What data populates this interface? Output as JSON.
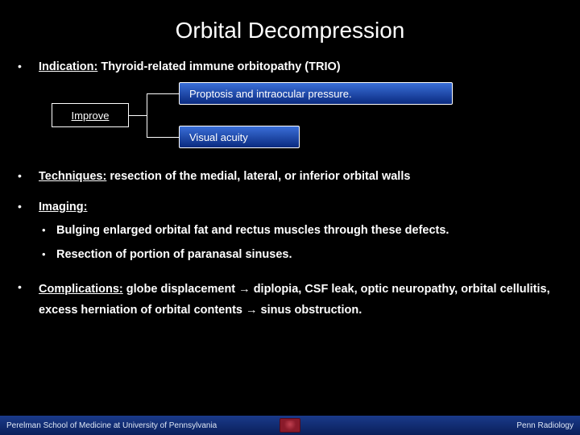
{
  "title": "Orbital Decompression",
  "indication": {
    "label": "Indication:",
    "text": "Thyroid-related immune orbitopathy (TRIO)"
  },
  "diagram": {
    "improve_label": "Improve",
    "box_top": "Proptosis and intraocular pressure.",
    "box_bottom": "Visual acuity",
    "colors": {
      "box_gradient_top": "#3a6fd8",
      "box_gradient_bottom": "#0a2a80",
      "border": "#ffffff"
    }
  },
  "techniques": {
    "label": "Techniques:",
    "text": "resection of the medial, lateral, or inferior orbital walls"
  },
  "imaging": {
    "label": "Imaging:",
    "items": [
      "Bulging enlarged orbital fat and rectus muscles through these defects.",
      "Resection of portion of paranasal sinuses."
    ]
  },
  "complications": {
    "label": "Complications:",
    "text_parts": {
      "p1": "globe displacement ",
      "arrow1": "→",
      "p2": " diplopia, CSF leak, optic neuropathy, orbital cellulitis, excess herniation of orbital contents ",
      "arrow2": "→",
      "p3": " sinus obstruction."
    }
  },
  "footer": {
    "left": "Perelman School of Medicine at University of Pennsylvania",
    "right": "Penn Radiology"
  },
  "colors": {
    "background": "#000000",
    "text": "#ffffff",
    "footer_bg_top": "#1a3a8a",
    "footer_bg_bottom": "#0a1f5a"
  }
}
